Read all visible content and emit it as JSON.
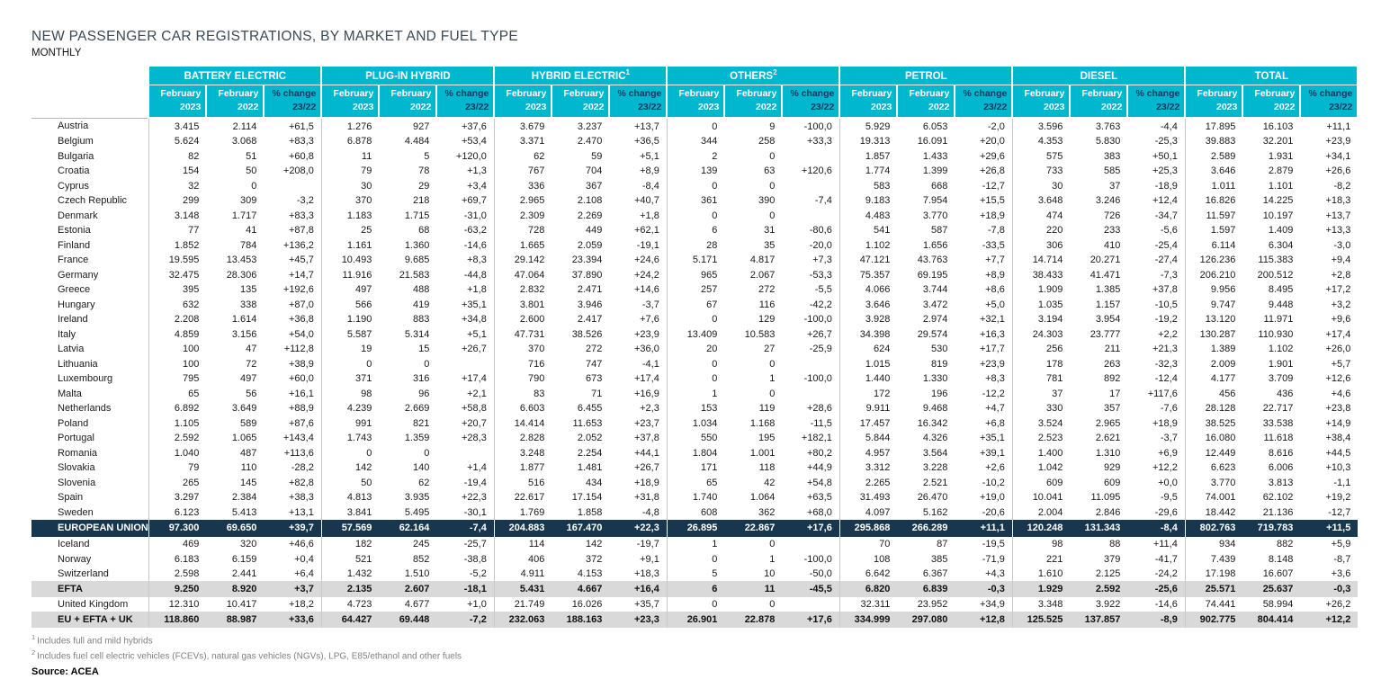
{
  "title": "NEW PASSENGER CAR REGISTRATIONS, BY MARKET AND FUEL TYPE",
  "subtitle": "MONTHLY",
  "colors": {
    "header_bg": "#00b7d0",
    "header_text": "#ffffff",
    "change_header_text": "#17365d",
    "eu_row_bg": "#17374e",
    "summary_row_bg": "#d9d9d9",
    "title_color": "#3a4a55"
  },
  "table": {
    "groups": [
      {
        "label": "BATTERY ELECTRIC",
        "sup": ""
      },
      {
        "label": "PLUG-IN HYBRID",
        "sup": ""
      },
      {
        "label": "HYBRID ELECTRIC",
        "sup": "1"
      },
      {
        "label": "OTHERS",
        "sup": "2"
      },
      {
        "label": "PETROL",
        "sup": ""
      },
      {
        "label": "DIESEL",
        "sup": ""
      },
      {
        "label": "TOTAL",
        "sup": ""
      }
    ],
    "subcolumns": [
      {
        "line1": "February",
        "line2": "2023"
      },
      {
        "line1": "February",
        "line2": "2022"
      },
      {
        "line1": "% change",
        "line2": "23/22"
      }
    ],
    "rows": [
      {
        "name": "Austria",
        "style": "normal",
        "values": [
          "3.415",
          "2.114",
          "+61,5",
          "1.276",
          "927",
          "+37,6",
          "3.679",
          "3.237",
          "+13,7",
          "0",
          "9",
          "-100,0",
          "5.929",
          "6.053",
          "-2,0",
          "3.596",
          "3.763",
          "-4,4",
          "17.895",
          "16.103",
          "+11,1"
        ]
      },
      {
        "name": "Belgium",
        "style": "normal",
        "values": [
          "5.624",
          "3.068",
          "+83,3",
          "6.878",
          "4.484",
          "+53,4",
          "3.371",
          "2.470",
          "+36,5",
          "344",
          "258",
          "+33,3",
          "19.313",
          "16.091",
          "+20,0",
          "4.353",
          "5.830",
          "-25,3",
          "39.883",
          "32.201",
          "+23,9"
        ]
      },
      {
        "name": "Bulgaria",
        "style": "normal",
        "values": [
          "82",
          "51",
          "+60,8",
          "11",
          "5",
          "+120,0",
          "62",
          "59",
          "+5,1",
          "2",
          "0",
          "",
          "1.857",
          "1.433",
          "+29,6",
          "575",
          "383",
          "+50,1",
          "2.589",
          "1.931",
          "+34,1"
        ]
      },
      {
        "name": "Croatia",
        "style": "normal",
        "values": [
          "154",
          "50",
          "+208,0",
          "79",
          "78",
          "+1,3",
          "767",
          "704",
          "+8,9",
          "139",
          "63",
          "+120,6",
          "1.774",
          "1.399",
          "+26,8",
          "733",
          "585",
          "+25,3",
          "3.646",
          "2.879",
          "+26,6"
        ]
      },
      {
        "name": "Cyprus",
        "style": "normal",
        "values": [
          "32",
          "0",
          "",
          "30",
          "29",
          "+3,4",
          "336",
          "367",
          "-8,4",
          "0",
          "0",
          "",
          "583",
          "668",
          "-12,7",
          "30",
          "37",
          "-18,9",
          "1.011",
          "1.101",
          "-8,2"
        ]
      },
      {
        "name": "Czech Republic",
        "style": "normal",
        "values": [
          "299",
          "309",
          "-3,2",
          "370",
          "218",
          "+69,7",
          "2.965",
          "2.108",
          "+40,7",
          "361",
          "390",
          "-7,4",
          "9.183",
          "7.954",
          "+15,5",
          "3.648",
          "3.246",
          "+12,4",
          "16.826",
          "14.225",
          "+18,3"
        ]
      },
      {
        "name": "Denmark",
        "style": "normal",
        "values": [
          "3.148",
          "1.717",
          "+83,3",
          "1.183",
          "1.715",
          "-31,0",
          "2.309",
          "2.269",
          "+1,8",
          "0",
          "0",
          "",
          "4.483",
          "3.770",
          "+18,9",
          "474",
          "726",
          "-34,7",
          "11.597",
          "10.197",
          "+13,7"
        ]
      },
      {
        "name": "Estonia",
        "style": "normal",
        "values": [
          "77",
          "41",
          "+87,8",
          "25",
          "68",
          "-63,2",
          "728",
          "449",
          "+62,1",
          "6",
          "31",
          "-80,6",
          "541",
          "587",
          "-7,8",
          "220",
          "233",
          "-5,6",
          "1.597",
          "1.409",
          "+13,3"
        ]
      },
      {
        "name": "Finland",
        "style": "normal",
        "values": [
          "1.852",
          "784",
          "+136,2",
          "1.161",
          "1.360",
          "-14,6",
          "1.665",
          "2.059",
          "-19,1",
          "28",
          "35",
          "-20,0",
          "1.102",
          "1.656",
          "-33,5",
          "306",
          "410",
          "-25,4",
          "6.114",
          "6.304",
          "-3,0"
        ]
      },
      {
        "name": "France",
        "style": "normal",
        "values": [
          "19.595",
          "13.453",
          "+45,7",
          "10.493",
          "9.685",
          "+8,3",
          "29.142",
          "23.394",
          "+24,6",
          "5.171",
          "4.817",
          "+7,3",
          "47.121",
          "43.763",
          "+7,7",
          "14.714",
          "20.271",
          "-27,4",
          "126.236",
          "115.383",
          "+9,4"
        ]
      },
      {
        "name": "Germany",
        "style": "normal",
        "values": [
          "32.475",
          "28.306",
          "+14,7",
          "11.916",
          "21.583",
          "-44,8",
          "47.064",
          "37.890",
          "+24,2",
          "965",
          "2.067",
          "-53,3",
          "75.357",
          "69.195",
          "+8,9",
          "38.433",
          "41.471",
          "-7,3",
          "206.210",
          "200.512",
          "+2,8"
        ]
      },
      {
        "name": "Greece",
        "style": "normal",
        "values": [
          "395",
          "135",
          "+192,6",
          "497",
          "488",
          "+1,8",
          "2.832",
          "2.471",
          "+14,6",
          "257",
          "272",
          "-5,5",
          "4.066",
          "3.744",
          "+8,6",
          "1.909",
          "1.385",
          "+37,8",
          "9.956",
          "8.495",
          "+17,2"
        ]
      },
      {
        "name": "Hungary",
        "style": "normal",
        "values": [
          "632",
          "338",
          "+87,0",
          "566",
          "419",
          "+35,1",
          "3.801",
          "3.946",
          "-3,7",
          "67",
          "116",
          "-42,2",
          "3.646",
          "3.472",
          "+5,0",
          "1.035",
          "1.157",
          "-10,5",
          "9.747",
          "9.448",
          "+3,2"
        ]
      },
      {
        "name": "Ireland",
        "style": "normal",
        "values": [
          "2.208",
          "1.614",
          "+36,8",
          "1.190",
          "883",
          "+34,8",
          "2.600",
          "2.417",
          "+7,6",
          "0",
          "129",
          "-100,0",
          "3.928",
          "2.974",
          "+32,1",
          "3.194",
          "3.954",
          "-19,2",
          "13.120",
          "11.971",
          "+9,6"
        ]
      },
      {
        "name": "Italy",
        "style": "normal",
        "values": [
          "4.859",
          "3.156",
          "+54,0",
          "5.587",
          "5.314",
          "+5,1",
          "47.731",
          "38.526",
          "+23,9",
          "13.409",
          "10.583",
          "+26,7",
          "34.398",
          "29.574",
          "+16,3",
          "24.303",
          "23.777",
          "+2,2",
          "130.287",
          "110.930",
          "+17,4"
        ]
      },
      {
        "name": "Latvia",
        "style": "normal",
        "values": [
          "100",
          "47",
          "+112,8",
          "19",
          "15",
          "+26,7",
          "370",
          "272",
          "+36,0",
          "20",
          "27",
          "-25,9",
          "624",
          "530",
          "+17,7",
          "256",
          "211",
          "+21,3",
          "1.389",
          "1.102",
          "+26,0"
        ]
      },
      {
        "name": "Lithuania",
        "style": "normal",
        "values": [
          "100",
          "72",
          "+38,9",
          "0",
          "0",
          "",
          "716",
          "747",
          "-4,1",
          "0",
          "0",
          "",
          "1.015",
          "819",
          "+23,9",
          "178",
          "263",
          "-32,3",
          "2.009",
          "1.901",
          "+5,7"
        ]
      },
      {
        "name": "Luxembourg",
        "style": "normal",
        "values": [
          "795",
          "497",
          "+60,0",
          "371",
          "316",
          "+17,4",
          "790",
          "673",
          "+17,4",
          "0",
          "1",
          "-100,0",
          "1.440",
          "1.330",
          "+8,3",
          "781",
          "892",
          "-12,4",
          "4.177",
          "3.709",
          "+12,6"
        ]
      },
      {
        "name": "Malta",
        "style": "normal",
        "values": [
          "65",
          "56",
          "+16,1",
          "98",
          "96",
          "+2,1",
          "83",
          "71",
          "+16,9",
          "1",
          "0",
          "",
          "172",
          "196",
          "-12,2",
          "37",
          "17",
          "+117,6",
          "456",
          "436",
          "+4,6"
        ]
      },
      {
        "name": "Netherlands",
        "style": "normal",
        "values": [
          "6.892",
          "3.649",
          "+88,9",
          "4.239",
          "2.669",
          "+58,8",
          "6.603",
          "6.455",
          "+2,3",
          "153",
          "119",
          "+28,6",
          "9.911",
          "9.468",
          "+4,7",
          "330",
          "357",
          "-7,6",
          "28.128",
          "22.717",
          "+23,8"
        ]
      },
      {
        "name": "Poland",
        "style": "normal",
        "values": [
          "1.105",
          "589",
          "+87,6",
          "991",
          "821",
          "+20,7",
          "14.414",
          "11.653",
          "+23,7",
          "1.034",
          "1.168",
          "-11,5",
          "17.457",
          "16.342",
          "+6,8",
          "3.524",
          "2.965",
          "+18,9",
          "38.525",
          "33.538",
          "+14,9"
        ]
      },
      {
        "name": "Portugal",
        "style": "normal",
        "values": [
          "2.592",
          "1.065",
          "+143,4",
          "1.743",
          "1.359",
          "+28,3",
          "2.828",
          "2.052",
          "+37,8",
          "550",
          "195",
          "+182,1",
          "5.844",
          "4.326",
          "+35,1",
          "2.523",
          "2.621",
          "-3,7",
          "16.080",
          "11.618",
          "+38,4"
        ]
      },
      {
        "name": "Romania",
        "style": "normal",
        "values": [
          "1.040",
          "487",
          "+113,6",
          "0",
          "0",
          "",
          "3.248",
          "2.254",
          "+44,1",
          "1.804",
          "1.001",
          "+80,2",
          "4.957",
          "3.564",
          "+39,1",
          "1.400",
          "1.310",
          "+6,9",
          "12.449",
          "8.616",
          "+44,5"
        ]
      },
      {
        "name": "Slovakia",
        "style": "normal",
        "values": [
          "79",
          "110",
          "-28,2",
          "142",
          "140",
          "+1,4",
          "1.877",
          "1.481",
          "+26,7",
          "171",
          "118",
          "+44,9",
          "3.312",
          "3.228",
          "+2,6",
          "1.042",
          "929",
          "+12,2",
          "6.623",
          "6.006",
          "+10,3"
        ]
      },
      {
        "name": "Slovenia",
        "style": "normal",
        "values": [
          "265",
          "145",
          "+82,8",
          "50",
          "62",
          "-19,4",
          "516",
          "434",
          "+18,9",
          "65",
          "42",
          "+54,8",
          "2.265",
          "2.521",
          "-10,2",
          "609",
          "609",
          "+0,0",
          "3.770",
          "3.813",
          "-1,1"
        ]
      },
      {
        "name": "Spain",
        "style": "normal",
        "values": [
          "3.297",
          "2.384",
          "+38,3",
          "4.813",
          "3.935",
          "+22,3",
          "22.617",
          "17.154",
          "+31,8",
          "1.740",
          "1.064",
          "+63,5",
          "31.493",
          "26.470",
          "+19,0",
          "10.041",
          "11.095",
          "-9,5",
          "74.001",
          "62.102",
          "+19,2"
        ]
      },
      {
        "name": "Sweden",
        "style": "normal",
        "values": [
          "6.123",
          "5.413",
          "+13,1",
          "3.841",
          "5.495",
          "-30,1",
          "1.769",
          "1.858",
          "-4,8",
          "608",
          "362",
          "+68,0",
          "4.097",
          "5.162",
          "-20,6",
          "2.004",
          "2.846",
          "-29,6",
          "18.442",
          "21.136",
          "-12,7"
        ]
      },
      {
        "name": "EUROPEAN UNION",
        "style": "eu",
        "values": [
          "97.300",
          "69.650",
          "+39,7",
          "57.569",
          "62.164",
          "-7,4",
          "204.883",
          "167.470",
          "+22,3",
          "26.895",
          "22.867",
          "+17,6",
          "295.868",
          "266.289",
          "+11,1",
          "120.248",
          "131.343",
          "-8,4",
          "802.763",
          "719.783",
          "+11,5"
        ]
      },
      {
        "name": "Iceland",
        "style": "normal",
        "values": [
          "469",
          "320",
          "+46,6",
          "182",
          "245",
          "-25,7",
          "114",
          "142",
          "-19,7",
          "1",
          "0",
          "",
          "70",
          "87",
          "-19,5",
          "98",
          "88",
          "+11,4",
          "934",
          "882",
          "+5,9"
        ]
      },
      {
        "name": "Norway",
        "style": "normal",
        "values": [
          "6.183",
          "6.159",
          "+0,4",
          "521",
          "852",
          "-38,8",
          "406",
          "372",
          "+9,1",
          "0",
          "1",
          "-100,0",
          "108",
          "385",
          "-71,9",
          "221",
          "379",
          "-41,7",
          "7.439",
          "8.148",
          "-8,7"
        ]
      },
      {
        "name": "Switzerland",
        "style": "normal",
        "values": [
          "2.598",
          "2.441",
          "+6,4",
          "1.432",
          "1.510",
          "-5,2",
          "4.911",
          "4.153",
          "+18,3",
          "5",
          "10",
          "-50,0",
          "6.642",
          "6.367",
          "+4,3",
          "1.610",
          "2.125",
          "-24,2",
          "17.198",
          "16.607",
          "+3,6"
        ]
      },
      {
        "name": "EFTA",
        "style": "summary",
        "values": [
          "9.250",
          "8.920",
          "+3,7",
          "2.135",
          "2.607",
          "-18,1",
          "5.431",
          "4.667",
          "+16,4",
          "6",
          "11",
          "-45,5",
          "6.820",
          "6.839",
          "-0,3",
          "1.929",
          "2.592",
          "-25,6",
          "25.571",
          "25.637",
          "-0,3"
        ]
      },
      {
        "name": "United Kingdom",
        "style": "normal",
        "values": [
          "12.310",
          "10.417",
          "+18,2",
          "4.723",
          "4.677",
          "+1,0",
          "21.749",
          "16.026",
          "+35,7",
          "0",
          "0",
          "",
          "32.311",
          "23.952",
          "+34,9",
          "3.348",
          "3.922",
          "-14,6",
          "74.441",
          "58.994",
          "+26,2"
        ]
      },
      {
        "name": "EU + EFTA + UK",
        "style": "summary",
        "values": [
          "118.860",
          "88.987",
          "+33,6",
          "64.427",
          "69.448",
          "-7,2",
          "232.063",
          "188.163",
          "+23,3",
          "26.901",
          "22.878",
          "+17,6",
          "334.999",
          "297.080",
          "+12,8",
          "125.525",
          "137.857",
          "-8,9",
          "902.775",
          "804.414",
          "+12,2"
        ]
      }
    ]
  },
  "footnotes": [
    {
      "marker": "1",
      "text": "Includes full and mild hybrids"
    },
    {
      "marker": "2",
      "text": "Includes fuel cell electric vehicles (FCEVs), natural gas vehicles (NGVs), LPG, E85/ethanol and other fuels"
    }
  ],
  "source": "Source: ACEA"
}
